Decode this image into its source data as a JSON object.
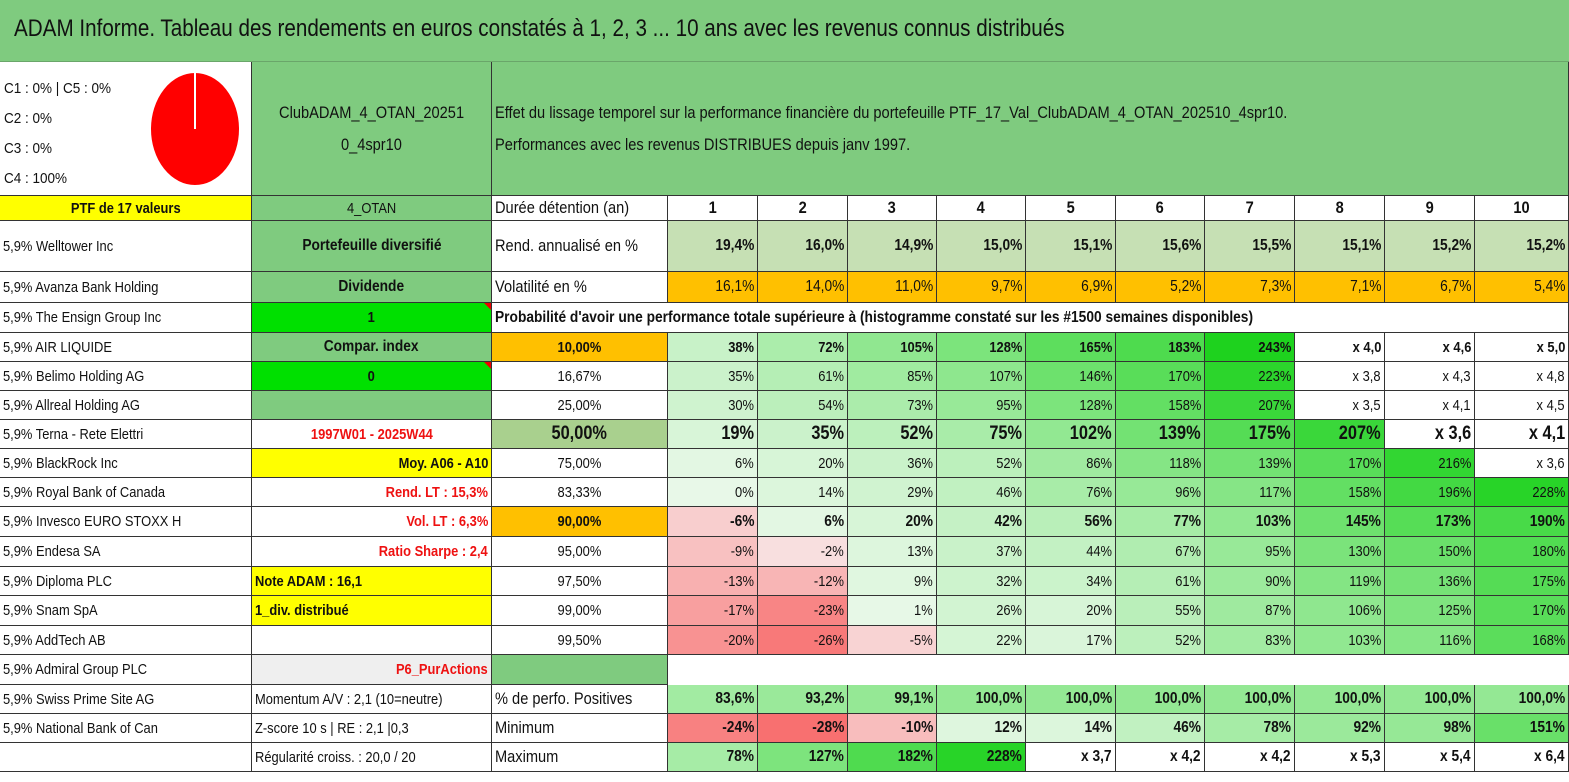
{
  "title": "ADAM Informe. Tableau des rendements en euros constatés à 1, 2, 3 ... 10 ans avec les revenus connus distribués",
  "allocation": {
    "lines": [
      "C1 : 0% | C5 : 0%",
      "C2 : 0%",
      "C3 : 0%",
      "C4 : 100%"
    ],
    "pie_color": "#ff0000",
    "slices": [
      {
        "label": "C1",
        "value": 0
      },
      {
        "label": "C2",
        "value": 0
      },
      {
        "label": "C3",
        "value": 0
      },
      {
        "label": "C4",
        "value": 100
      },
      {
        "label": "C5",
        "value": 0
      }
    ]
  },
  "portfolio_name": "ClubADAM_4_OTAN_20251\n0_4spr10",
  "description_line1": "Effet du lissage temporel sur la performance financière du portefeuille PTF_17_Val_ClubADAM_4_OTAN_202510_4spr10.",
  "description_line2": "Performances avec les revenus DISTRIBUES depuis janv 1997.",
  "holdings_header": "PTF de 17 valeurs",
  "holdings": [
    "5,9% Welltower Inc",
    "5,9% Avanza Bank Holding",
    "5,9% The Ensign Group Inc",
    "5,9% AIR LIQUIDE",
    "5,9% Belimo Holding AG",
    "5,9% Allreal Holding AG",
    "5,9% Terna - Rete Elettri",
    "5,9% BlackRock Inc",
    "5,9% Royal Bank of Canada",
    "5,9% Invesco EURO STOXX H",
    "5,9% Endesa SA",
    "5,9% Diploma PLC",
    "5,9% Snam SpA",
    "5,9% AddTech AB",
    "5,9% Admiral Group PLC",
    "5,9% Swiss Prime Site AG",
    "5,9% National Bank of Can"
  ],
  "info": {
    "code": "4_OTAN",
    "type": "Portefeuille diversifié",
    "dividend_label": "Dividende",
    "dividend_value": "1",
    "index_label": "Compar. index",
    "index_value": "0",
    "period": "1997W01 - 2025W44",
    "average": "Moy. A06 - A10",
    "rend_lt": "Rend. LT : 15,3%",
    "vol_lt": "Vol. LT : 6,3%",
    "sharpe": "Ratio Sharpe : 2,4",
    "note": "Note ADAM : 16,1",
    "div_distrib": "1_div. distribué",
    "sheet": "P6_PurActions",
    "momentum": "Momentum A/V : 2,1 (10=neutre)",
    "zscore": "Z-score 10 s | RE : 2,1 |0,3",
    "regularity": "Régularité croiss. : 20,0 / 20"
  },
  "table": {
    "duration_label": "Durée détention (an)",
    "years": [
      "1",
      "2",
      "3",
      "4",
      "5",
      "6",
      "7",
      "8",
      "9",
      "10"
    ],
    "rend_label": "Rend. annualisé en %",
    "rend": [
      "19,4%",
      "16,0%",
      "14,9%",
      "15,0%",
      "15,1%",
      "15,6%",
      "15,5%",
      "15,1%",
      "15,2%",
      "15,2%"
    ],
    "vol_label": "Volatilité en %",
    "vol": [
      "16,1%",
      "14,0%",
      "11,0%",
      "9,7%",
      "6,9%",
      "5,2%",
      "7,3%",
      "7,1%",
      "6,7%",
      "5,4%"
    ],
    "prob_title": "Probabilité d'avoir une performance totale supérieure à (histogramme constaté sur les #1500 semaines disponibles)",
    "prob_rows": [
      {
        "p": "10,00%",
        "v": [
          "38%",
          "72%",
          "105%",
          "128%",
          "165%",
          "183%",
          "243%",
          "x 4,0",
          "x 4,6",
          "x 5,0"
        ]
      },
      {
        "p": "16,67%",
        "v": [
          "35%",
          "61%",
          "85%",
          "107%",
          "146%",
          "170%",
          "223%",
          "x 3,8",
          "x 4,3",
          "x 4,8"
        ]
      },
      {
        "p": "25,00%",
        "v": [
          "30%",
          "54%",
          "73%",
          "95%",
          "128%",
          "158%",
          "207%",
          "x 3,5",
          "x 4,1",
          "x 4,5"
        ]
      },
      {
        "p": "50,00%",
        "v": [
          "19%",
          "35%",
          "52%",
          "75%",
          "102%",
          "139%",
          "175%",
          "207%",
          "x 3,6",
          "x 4,1"
        ]
      },
      {
        "p": "75,00%",
        "v": [
          "6%",
          "20%",
          "36%",
          "52%",
          "86%",
          "118%",
          "139%",
          "170%",
          "216%",
          "x 3,6"
        ]
      },
      {
        "p": "83,33%",
        "v": [
          "0%",
          "14%",
          "29%",
          "46%",
          "76%",
          "96%",
          "117%",
          "158%",
          "196%",
          "228%"
        ]
      },
      {
        "p": "90,00%",
        "v": [
          "-6%",
          "6%",
          "20%",
          "42%",
          "56%",
          "77%",
          "103%",
          "145%",
          "173%",
          "190%"
        ]
      },
      {
        "p": "95,00%",
        "v": [
          "-9%",
          "-2%",
          "13%",
          "37%",
          "44%",
          "67%",
          "95%",
          "130%",
          "150%",
          "180%"
        ]
      },
      {
        "p": "97,50%",
        "v": [
          "-13%",
          "-12%",
          "9%",
          "32%",
          "34%",
          "61%",
          "90%",
          "119%",
          "136%",
          "175%"
        ]
      },
      {
        "p": "99,00%",
        "v": [
          "-17%",
          "-23%",
          "1%",
          "26%",
          "20%",
          "55%",
          "87%",
          "106%",
          "125%",
          "170%"
        ]
      },
      {
        "p": "99,50%",
        "v": [
          "-20%",
          "-26%",
          "-5%",
          "22%",
          "17%",
          "52%",
          "83%",
          "103%",
          "116%",
          "168%"
        ]
      }
    ],
    "pos_label": "% de perfo. Positives",
    "pos": [
      "83,6%",
      "93,2%",
      "99,1%",
      "100,0%",
      "100,0%",
      "100,0%",
      "100,0%",
      "100,0%",
      "100,0%",
      "100,0%"
    ],
    "min_label": "Minimum",
    "min": [
      "-24%",
      "-28%",
      "-10%",
      "12%",
      "14%",
      "46%",
      "78%",
      "92%",
      "98%",
      "151%"
    ],
    "max_label": "Maximum",
    "max": [
      "78%",
      "127%",
      "182%",
      "228%",
      "x 3,7",
      "x 4,2",
      "x 4,2",
      "x 5,3",
      "x 5,4",
      "x 6,4"
    ]
  },
  "colors": {
    "title_bg": "#7fcb7f",
    "header_green": "#7fcb7f",
    "yellow": "#ffff00",
    "bright_green": "#00e000",
    "orange": "#ffc000",
    "light_green": "#c6e0b4",
    "mid_green": "#a9d08e",
    "grey": "#efefef",
    "red_text": "#e11111"
  }
}
